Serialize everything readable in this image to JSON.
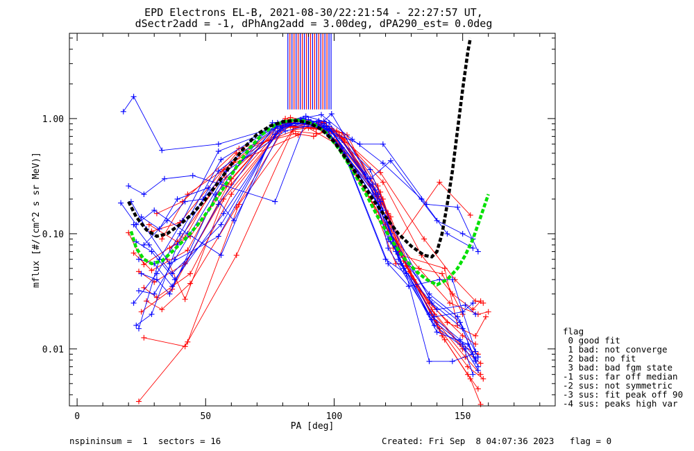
{
  "chart_data": {
    "type": "line",
    "title": "EPD Electrons EL-B, 2021-08-30/22:21:54 - 22:27:57 UT,",
    "subtitle": "dSectr2add = -1, dPhAng2add = 3.00deg, dPA290_est=   0.0deg",
    "xlabel": "PA [deg]",
    "ylabel": "mflux [#/(cm^2 s sr MeV)]",
    "xlim": [
      -3,
      186
    ],
    "ylim": [
      0.0032,
      5.5
    ],
    "yscale": "log",
    "grid": false,
    "xticks": [
      {
        "value": 0,
        "label": "0"
      },
      {
        "value": 50,
        "label": "50"
      },
      {
        "value": 100,
        "label": "100"
      },
      {
        "value": 150,
        "label": "150"
      }
    ],
    "yticks": [
      {
        "value": 0.01,
        "label": "0.01"
      },
      {
        "value": 0.1,
        "label": "0.10"
      },
      {
        "value": 1.0,
        "label": "1.00"
      }
    ],
    "colors": {
      "red": "#ff0000",
      "blue": "#0000ff",
      "black": "#000000",
      "green": "#00e000"
    },
    "black_fit": {
      "x": [
        20,
        23,
        27,
        31,
        35,
        40,
        45,
        50,
        55,
        60,
        65,
        70,
        75,
        80,
        85,
        90,
        95,
        100,
        105,
        110,
        115,
        120,
        125,
        130,
        135,
        138,
        140,
        142,
        144,
        146,
        148,
        150,
        152,
        153
      ],
      "y": [
        0.19,
        0.14,
        0.108,
        0.095,
        0.1,
        0.12,
        0.15,
        0.2,
        0.28,
        0.4,
        0.56,
        0.73,
        0.86,
        0.94,
        0.96,
        0.92,
        0.81,
        0.63,
        0.44,
        0.3,
        0.2,
        0.14,
        0.1,
        0.078,
        0.065,
        0.063,
        0.07,
        0.1,
        0.18,
        0.35,
        0.8,
        1.8,
        3.8,
        5.0
      ]
    },
    "green_fit": {
      "x": [
        21,
        23,
        26,
        29,
        33,
        37,
        42,
        47,
        52,
        57,
        62,
        67,
        72,
        77,
        82,
        87,
        92,
        97,
        102,
        107,
        112,
        117,
        122,
        127,
        132,
        136,
        140,
        144,
        148,
        151,
        154,
        157,
        160
      ],
      "y": [
        0.105,
        0.075,
        0.06,
        0.055,
        0.058,
        0.07,
        0.09,
        0.12,
        0.17,
        0.25,
        0.38,
        0.55,
        0.73,
        0.88,
        0.96,
        0.97,
        0.9,
        0.75,
        0.54,
        0.36,
        0.23,
        0.14,
        0.09,
        0.062,
        0.047,
        0.04,
        0.036,
        0.04,
        0.05,
        0.065,
        0.09,
        0.14,
        0.22
      ]
    },
    "series": [
      {
        "color": "red",
        "x": [
          20,
          26,
          42,
          57,
          79,
          92,
          103,
          117,
          125,
          137,
          150,
          155
        ],
        "y": [
          0.102,
          0.054,
          0.093,
          0.36,
          0.88,
          0.84,
          0.75,
          0.26,
          0.07,
          0.025,
          0.013,
          0.011
        ]
      },
      {
        "color": "red",
        "x": [
          22,
          29,
          43,
          58,
          80,
          93,
          102,
          118,
          126,
          138,
          149,
          156
        ],
        "y": [
          0.068,
          0.048,
          0.072,
          0.31,
          0.86,
          0.82,
          0.7,
          0.23,
          0.065,
          0.022,
          0.011,
          0.009
        ]
      },
      {
        "color": "red",
        "x": [
          24,
          30,
          42,
          60,
          81,
          94,
          101,
          119,
          127,
          139,
          150,
          157
        ],
        "y": [
          0.047,
          0.038,
          0.055,
          0.27,
          0.92,
          0.86,
          0.64,
          0.2,
          0.058,
          0.02,
          0.01,
          0.0075
        ]
      },
      {
        "color": "red",
        "x": [
          26,
          31,
          44,
          60,
          82,
          95,
          103,
          118,
          128,
          140,
          151,
          157
        ],
        "y": [
          0.034,
          0.028,
          0.045,
          0.22,
          0.96,
          0.9,
          0.68,
          0.18,
          0.052,
          0.017,
          0.0085,
          0.006
        ]
      },
      {
        "color": "red",
        "x": [
          27,
          33,
          44,
          62,
          83,
          96,
          104,
          120,
          129,
          141,
          152,
          158
        ],
        "y": [
          0.026,
          0.022,
          0.037,
          0.17,
          1.02,
          0.92,
          0.66,
          0.16,
          0.047,
          0.015,
          0.007,
          0.0055
        ]
      },
      {
        "color": "red",
        "x": [
          26,
          42,
          62,
          84,
          97,
          105,
          121,
          130,
          142,
          152,
          156
        ],
        "y": [
          0.0125,
          0.0105,
          0.065,
          0.8,
          0.86,
          0.72,
          0.15,
          0.043,
          0.013,
          0.006,
          0.0045
        ]
      },
      {
        "color": "red",
        "x": [
          24,
          43,
          63,
          85,
          96,
          104,
          122,
          131,
          143,
          153,
          157
        ],
        "y": [
          0.0035,
          0.0115,
          0.18,
          0.86,
          0.94,
          0.62,
          0.14,
          0.04,
          0.012,
          0.0055,
          0.0033
        ]
      },
      {
        "color": "red",
        "x": [
          25,
          37,
          60,
          81,
          94,
          102,
          120,
          132,
          144,
          155,
          159
        ],
        "y": [
          0.021,
          0.033,
          0.3,
          1.0,
          0.88,
          0.58,
          0.12,
          0.035,
          0.017,
          0.013,
          0.019
        ]
      },
      {
        "color": "red",
        "x": [
          28,
          39,
          61,
          83,
          95,
          103,
          121,
          133,
          145,
          156,
          160
        ],
        "y": [
          0.12,
          0.085,
          0.42,
          0.86,
          0.8,
          0.56,
          0.105,
          0.05,
          0.025,
          0.02,
          0.021
        ]
      },
      {
        "color": "red",
        "x": [
          29,
          40,
          62,
          84,
          93,
          101,
          119,
          134,
          146,
          154,
          157
        ],
        "y": [
          0.105,
          0.125,
          0.5,
          0.78,
          0.74,
          0.78,
          0.28,
          0.065,
          0.03,
          0.022,
          0.026
        ]
      },
      {
        "color": "red",
        "x": [
          31,
          41,
          63,
          85,
          92,
          99,
          118,
          135,
          147,
          155,
          158
        ],
        "y": [
          0.15,
          0.19,
          0.55,
          0.74,
          0.7,
          0.82,
          0.34,
          0.09,
          0.04,
          0.026,
          0.025
        ]
      },
      {
        "color": "red",
        "x": [
          33,
          43,
          60,
          86,
          91,
          100,
          116,
          123,
          141,
          153
        ],
        "y": [
          0.09,
          0.22,
          0.4,
          0.72,
          0.9,
          0.66,
          0.22,
          0.075,
          0.28,
          0.145
        ]
      },
      {
        "color": "red",
        "x": [
          35,
          42,
          57,
          80,
          90,
          101,
          115,
          124,
          142,
          150
        ],
        "y": [
          0.06,
          0.027,
          0.2,
          0.84,
          0.83,
          0.6,
          0.18,
          0.055,
          0.045,
          0.02
        ]
      },
      {
        "color": "red",
        "x": [
          36,
          44,
          58,
          79,
          89,
          102,
          117,
          125,
          143,
          148
        ],
        "y": [
          0.075,
          0.095,
          0.26,
          0.9,
          0.95,
          0.7,
          0.21,
          0.066,
          0.05,
          0.016
        ]
      },
      {
        "color": "blue",
        "x": [
          21,
          27,
          36,
          55,
          77,
          86,
          98,
          113,
          121,
          137,
          148,
          156
        ],
        "y": [
          0.19,
          0.11,
          0.055,
          0.095,
          0.73,
          0.95,
          0.81,
          0.3,
          0.09,
          0.03,
          0.019,
          0.0085
        ]
      },
      {
        "color": "blue",
        "x": [
          22,
          28,
          37,
          56,
          78,
          87,
          97,
          112,
          122,
          137,
          149,
          155
        ],
        "y": [
          0.12,
          0.08,
          0.045,
          0.12,
          0.78,
          0.98,
          0.86,
          0.33,
          0.1,
          0.028,
          0.017,
          0.0078
        ]
      },
      {
        "color": "blue",
        "x": [
          23,
          29,
          38,
          57,
          79,
          88,
          96,
          114,
          123,
          138,
          150,
          156
        ],
        "y": [
          0.085,
          0.07,
          0.04,
          0.15,
          0.82,
          1.0,
          0.9,
          0.36,
          0.11,
          0.025,
          0.015,
          0.007
        ]
      },
      {
        "color": "blue",
        "x": [
          24,
          30,
          37,
          55,
          77,
          89,
          98,
          115,
          122,
          137,
          149,
          155
        ],
        "y": [
          0.06,
          0.055,
          0.035,
          0.18,
          0.88,
          1.05,
          0.92,
          0.27,
          0.085,
          0.02,
          0.012,
          0.0083
        ]
      },
      {
        "color": "blue",
        "x": [
          25,
          31,
          36,
          54,
          76,
          90,
          99,
          116,
          121,
          138,
          150,
          154
        ],
        "y": [
          0.045,
          0.04,
          0.03,
          0.22,
          0.92,
          0.98,
          0.78,
          0.24,
          0.075,
          0.018,
          0.011,
          0.006
        ]
      },
      {
        "color": "blue",
        "x": [
          24,
          30,
          38,
          56,
          78,
          91,
          98,
          117,
          124,
          139,
          151,
          156
        ],
        "y": [
          0.032,
          0.03,
          0.06,
          0.28,
          0.86,
          0.94,
          0.72,
          0.22,
          0.07,
          0.016,
          0.01,
          0.0065
        ]
      },
      {
        "color": "blue",
        "x": [
          23,
          29,
          39,
          55,
          79,
          92,
          97,
          118,
          125,
          140,
          152,
          155
        ],
        "y": [
          0.016,
          0.02,
          0.08,
          0.35,
          0.9,
          0.9,
          0.8,
          0.19,
          0.06,
          0.014,
          0.011,
          0.008
        ]
      },
      {
        "color": "blue",
        "x": [
          22,
          31,
          40,
          56,
          80,
          93,
          96,
          119,
          126,
          139,
          150,
          154
        ],
        "y": [
          0.025,
          0.045,
          0.1,
          0.44,
          0.93,
          0.87,
          0.86,
          0.16,
          0.055,
          0.019,
          0.021,
          0.025
        ]
      },
      {
        "color": "blue",
        "x": [
          24,
          32,
          41,
          55,
          81,
          94,
          98,
          120,
          127,
          140,
          151,
          155
        ],
        "y": [
          0.015,
          0.06,
          0.13,
          0.52,
          0.88,
          0.84,
          0.85,
          0.14,
          0.05,
          0.022,
          0.024,
          0.02
        ]
      },
      {
        "color": "blue",
        "x": [
          18,
          22,
          33,
          55,
          82,
          96,
          99,
          114,
          122,
          140,
          150,
          154
        ],
        "y": [
          1.15,
          1.55,
          0.53,
          0.6,
          0.9,
          0.95,
          1.1,
          0.3,
          0.43,
          0.13,
          0.1,
          0.09
        ]
      },
      {
        "color": "blue",
        "x": [
          20,
          26,
          34,
          45,
          77,
          89,
          97,
          110,
          119,
          136,
          148,
          156
        ],
        "y": [
          0.26,
          0.22,
          0.3,
          0.32,
          0.19,
          0.95,
          0.8,
          0.6,
          0.6,
          0.18,
          0.17,
          0.07
        ]
      },
      {
        "color": "blue",
        "x": [
          17,
          23,
          30,
          43,
          56,
          78,
          95,
          107,
          119,
          134,
          144,
          154
        ],
        "y": [
          0.185,
          0.12,
          0.16,
          0.1,
          0.065,
          0.92,
          1.08,
          0.66,
          0.41,
          0.2,
          0.1,
          0.075
        ]
      },
      {
        "color": "blue",
        "x": [
          25,
          32,
          39,
          51,
          61,
          80,
          94,
          103,
          120,
          128,
          137,
          146,
          154
        ],
        "y": [
          0.14,
          0.11,
          0.2,
          0.25,
          0.13,
          0.84,
          0.96,
          0.55,
          0.06,
          0.045,
          0.0078,
          0.0078,
          0.009
        ]
      },
      {
        "color": "blue",
        "x": [
          26,
          35,
          42,
          49,
          58,
          81,
          93,
          104,
          121,
          129,
          141,
          146,
          155
        ],
        "y": [
          0.08,
          0.13,
          0.19,
          0.2,
          0.35,
          0.78,
          0.9,
          0.5,
          0.055,
          0.035,
          0.04,
          0.04,
          0.0095
        ]
      }
    ],
    "vertical_lines": {
      "x": [
        82,
        82.8,
        83.6,
        84.4,
        85.2,
        86,
        86.8,
        87.6,
        88.4,
        89.2,
        90,
        90.8,
        91.6,
        92.4,
        93.2,
        94,
        94.8,
        95.6,
        96.4,
        97.2,
        98,
        98.8
      ],
      "colors": [
        "blue",
        "red",
        "blue",
        "red",
        "blue",
        "red",
        "blue",
        "red",
        "blue",
        "red",
        "blue",
        "red",
        "blue",
        "red",
        "blue",
        "red",
        "blue",
        "red",
        "blue",
        "red",
        "blue",
        "blue"
      ],
      "y_bottom": 1.2,
      "y_top": 5.5
    }
  },
  "legend": {
    "title": "flag",
    "items": [
      " 0 good fit",
      " 1 bad: not converge",
      " 2 bad: no fit",
      " 3 bad: bad fgm state",
      "-1 sus: far off median",
      "-2 sus: not symmetric",
      "-3 sus: fit peak off 90",
      "-4 sus: peaks high var"
    ]
  },
  "footer": {
    "left": "nspininsum =  1  sectors = 16",
    "right": "Created: Fri Sep  8 04:07:36 2023   flag = 0"
  }
}
